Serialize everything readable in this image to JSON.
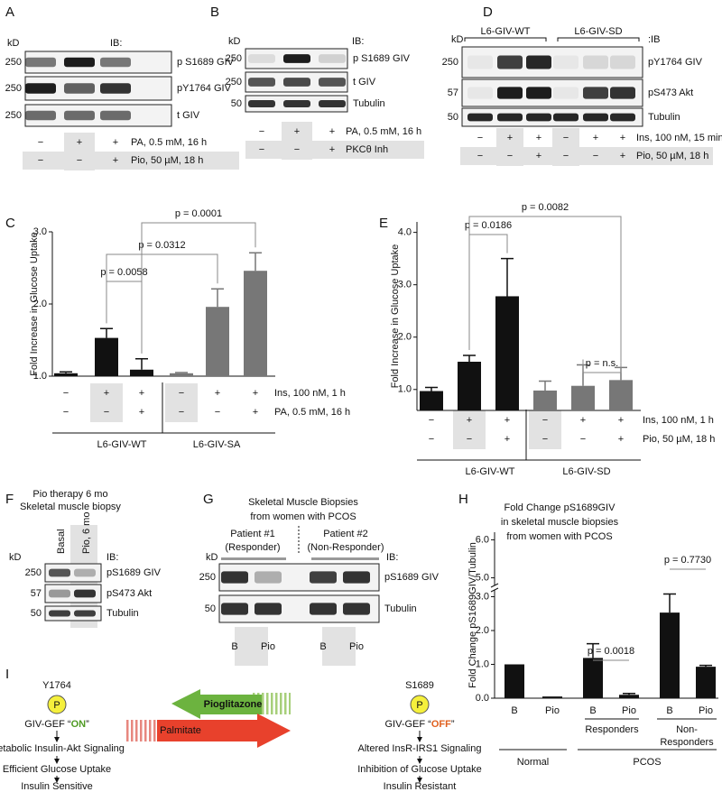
{
  "panel_a": {
    "letter": "A",
    "kd": "kD",
    "ib": "IB:",
    "rows": [
      {
        "mw": "250",
        "label": "p S1689 GIV"
      },
      {
        "mw": "250",
        "label": "pY1764 GIV"
      },
      {
        "mw": "250",
        "label": "t GIV"
      }
    ],
    "conditions": [
      {
        "signs": [
          "−",
          "+",
          "+"
        ],
        "label": "PA, 0.5 mM, 16 h"
      },
      {
        "signs": [
          "−",
          "−",
          "+"
        ],
        "label": "Pio, 50 µM, 18 h"
      }
    ]
  },
  "panel_b": {
    "letter": "B",
    "kd": "kD",
    "ib": "IB:",
    "rows": [
      {
        "mw": "250",
        "label": "p S1689 GIV"
      },
      {
        "mw": "250",
        "label": "t GIV"
      },
      {
        "mw": "50",
        "label": "Tubulin"
      }
    ],
    "conditions": [
      {
        "signs": [
          "−",
          "+",
          "+"
        ],
        "label": "PA, 0.5 mM, 16 h"
      },
      {
        "signs": [
          "−",
          "−",
          "+"
        ],
        "label": "PKCθ Inh"
      }
    ]
  },
  "panel_d": {
    "letter": "D",
    "kd": "kD",
    "ib": ":IB",
    "groups": [
      "L6-GIV-WT",
      "L6-GIV-SD"
    ],
    "rows": [
      {
        "mw": "250",
        "label": "pY1764 GIV"
      },
      {
        "mw": "57",
        "label": "pS473 Akt"
      },
      {
        "mw": "50",
        "label": "Tubulin"
      }
    ],
    "conditions": [
      {
        "signs": [
          "−",
          "+",
          "+",
          "−",
          "+",
          "+"
        ],
        "label": "Ins, 100 nM, 15 min"
      },
      {
        "signs": [
          "−",
          "−",
          "+",
          "−",
          "−",
          "+"
        ],
        "label": "Pio, 50 µM, 18 h"
      }
    ]
  },
  "panel_f": {
    "letter": "F",
    "title": [
      "Pio therapy 6 mo",
      "Skeletal muscle biopsy"
    ],
    "lanes": [
      "Basal",
      "Pio, 6 mo"
    ],
    "kd": "kD",
    "ib": "IB:",
    "rows": [
      {
        "mw": "250",
        "label": "pS1689 GIV"
      },
      {
        "mw": "57",
        "label": "pS473 Akt"
      },
      {
        "mw": "50",
        "label": "Tubulin"
      }
    ]
  },
  "panel_g": {
    "letter": "G",
    "title": [
      "Skeletal Muscle Biopsies",
      "from women with PCOS"
    ],
    "patients": [
      [
        "Patient #1",
        "(Responder)"
      ],
      [
        "Patient #2",
        "(Non-Responder)"
      ]
    ],
    "kd": "kD",
    "ib": "IB:",
    "rows": [
      {
        "mw": "250",
        "label": "pS1689 GIV"
      },
      {
        "mw": "50",
        "label": "Tubulin"
      }
    ],
    "lanes": [
      "B",
      "Pio",
      "B",
      "Pio"
    ]
  },
  "chart_data": [
    {
      "type": "bar",
      "letter": "C",
      "ylabel": "Fold Increase in Glucose Uptake",
      "ylim": [
        1,
        3
      ],
      "yticks": [
        {
          "value": 1,
          "label": "1.0"
        },
        {
          "value": 2,
          "label": "2.0"
        },
        {
          "value": 3,
          "label": "3.0"
        }
      ],
      "values": [
        1.04,
        1.53,
        1.09,
        1.04,
        1.96,
        2.46
      ],
      "errors": [
        0.02,
        0.13,
        0.15,
        0.01,
        0.25,
        0.25
      ],
      "colors": [
        "#111111",
        "#111111",
        "#111111",
        "#777777",
        "#777777",
        "#777777"
      ],
      "conditions": [
        {
          "signs": [
            "−",
            "+",
            "+",
            "−",
            "+",
            "+"
          ],
          "label": "Ins, 100 nM, 1 h"
        },
        {
          "signs": [
            "−",
            "−",
            "+",
            "−",
            "−",
            "+"
          ],
          "label": "PA, 0.5 mM, 16 h"
        }
      ],
      "groups": [
        "L6-GIV-WT",
        "L6-GIV-SA"
      ],
      "annotations": [
        "p = 0.0058",
        "p = 0.0312",
        "p = 0.0001"
      ]
    },
    {
      "type": "bar",
      "letter": "E",
      "ylabel": "Fold Increase in Glucose Uptake",
      "ylim": [
        0.6,
        4.2
      ],
      "yticks": [
        {
          "value": 1,
          "label": "1.0"
        },
        {
          "value": 2,
          "label": "2.0"
        },
        {
          "value": 3,
          "label": "3.0"
        },
        {
          "value": 4,
          "label": "4.0"
        }
      ],
      "values": [
        0.97,
        1.53,
        2.78,
        0.98,
        1.07,
        1.18
      ],
      "errors": [
        0.07,
        0.12,
        0.72,
        0.18,
        0.4,
        0.24
      ],
      "colors": [
        "#111111",
        "#111111",
        "#111111",
        "#777777",
        "#777777",
        "#777777"
      ],
      "conditions": [
        {
          "signs": [
            "−",
            "+",
            "+",
            "−",
            "+",
            "+"
          ],
          "label": "Ins, 100 nM, 1 h"
        },
        {
          "signs": [
            "−",
            "−",
            "+",
            "−",
            "−",
            "+"
          ],
          "label": "Pio, 50 µM, 18 h"
        }
      ],
      "groups": [
        "L6-GIV-WT",
        "L6-GIV-SD"
      ],
      "annotations": [
        "p = 0.0186",
        "p = 0.0082",
        "p = n.s."
      ]
    },
    {
      "type": "bar",
      "letter": "H",
      "title": [
        "Fold Change pS1689GIV",
        "in skeletal muscle biopsies",
        "from women with PCOS"
      ],
      "ylabel": "Fold Change pS1689GIV/Tubulin",
      "ylim": [
        0,
        6.2
      ],
      "axis_break": [
        3.2,
        4.8
      ],
      "yticks": [
        {
          "value": 0,
          "label": "0.0"
        },
        {
          "value": 1,
          "label": "1.0"
        },
        {
          "value": 2,
          "label": "2.0"
        },
        {
          "value": 3,
          "label": "3.0"
        },
        {
          "value": 5,
          "label": "5.0"
        },
        {
          "value": 6,
          "label": "6.0"
        }
      ],
      "categories": [
        "B",
        "Pio",
        "B",
        "Pio",
        "B",
        "Pio"
      ],
      "values": [
        1.0,
        0.05,
        1.19,
        0.1,
        2.53,
        0.93
      ],
      "errors": [
        null,
        null,
        0.42,
        0.04,
        0.55,
        0.04
      ],
      "colors": [
        "#111111",
        "#111111",
        "#111111",
        "#111111",
        "#111111",
        "#111111"
      ],
      "subgroups": [
        [
          "Responders"
        ],
        [
          "Non-",
          "Responders"
        ]
      ],
      "groups": [
        "Normal",
        "PCOS"
      ],
      "annotations": [
        "p = 0.0018",
        "p = 0.7730"
      ]
    }
  ],
  "panel_i": {
    "letter": "I",
    "left": {
      "site": "Y1764",
      "badge": "P",
      "state": [
        "GIV-GEF “",
        "ON",
        "”"
      ],
      "steps": [
        "Metabolic Insulin-Akt Signaling",
        "Efficient Glucose Uptake",
        "Insulin Sensitive"
      ]
    },
    "right": {
      "site": "S1689",
      "badge": "P",
      "state": [
        "GIV-GEF “",
        "OFF",
        "”"
      ],
      "steps": [
        "Altered InsR-IRS1 Signaling",
        "Inhibition of Glucose Uptake",
        "Insulin Resistant"
      ]
    },
    "arrows": [
      "Pioglitazone",
      "Palmitate"
    ]
  }
}
